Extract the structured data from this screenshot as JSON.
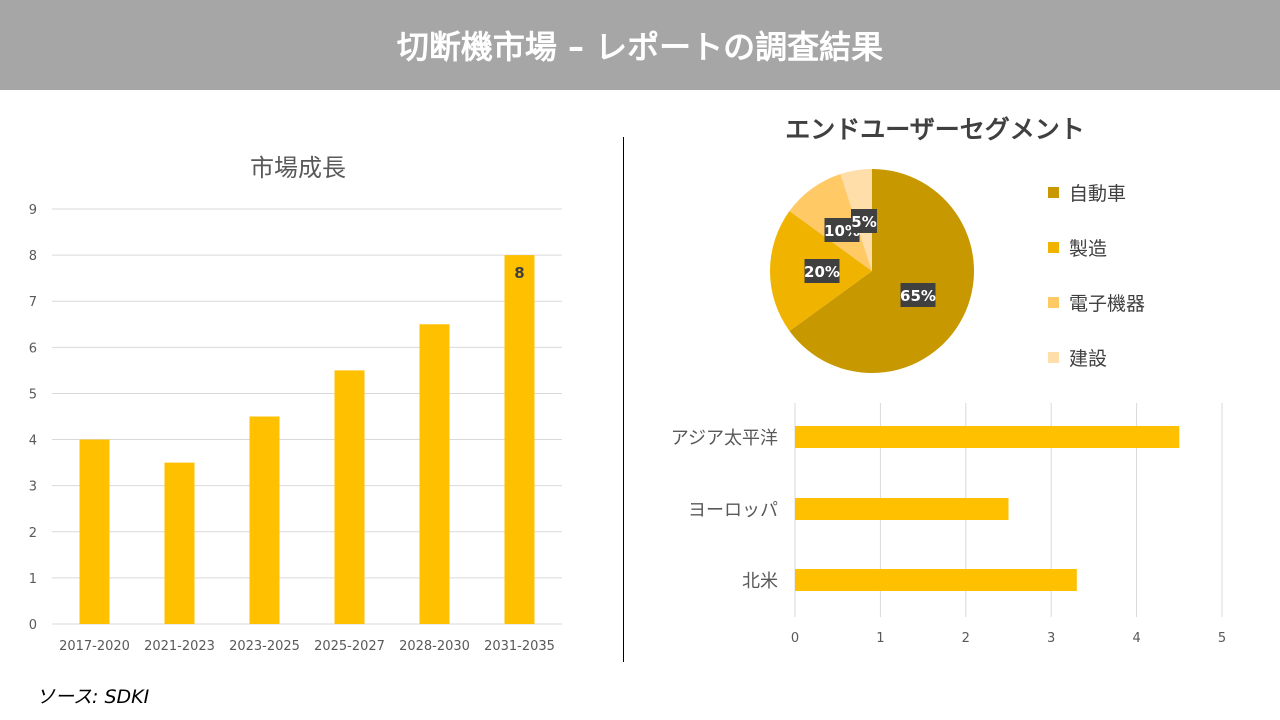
{
  "header": {
    "title": "切断機市場 – レポートの調査結果"
  },
  "source": "ソース: SDKI",
  "colors": {
    "bar": "#FFC000",
    "header": "#A6A6A6",
    "pie": [
      "#C89800",
      "#F0B400",
      "#FFC966",
      "#FFDEAA"
    ]
  },
  "chart_data": [
    {
      "type": "bar",
      "title": "市場成長",
      "categories": [
        "2017-2020",
        "2021-2023",
        "2023-2025",
        "2025-2027",
        "2028-2030",
        "2031-2035"
      ],
      "values": [
        4,
        3.5,
        4.5,
        5.5,
        6.5,
        8
      ],
      "data_labels": {
        "5": "8"
      },
      "ylim": [
        0,
        9
      ],
      "yticks": [
        "0",
        "1",
        "2",
        "3",
        "4",
        "5",
        "6",
        "7",
        "8",
        "9"
      ],
      "grid": true
    },
    {
      "type": "pie",
      "title": "エンドユーザーセグメント",
      "labels": [
        "自動車",
        "製造",
        "電子機器",
        "建設"
      ],
      "values": [
        65,
        20,
        10,
        5
      ],
      "value_labels": [
        "65%",
        "20%",
        "10%",
        "5%"
      ],
      "legend": "right"
    },
    {
      "type": "bar",
      "orientation": "horizontal",
      "categories": [
        "アジア太平洋",
        "ヨーロッパ",
        "北米"
      ],
      "values": [
        4.5,
        2.5,
        3.3
      ],
      "xlim": [
        0,
        5
      ],
      "xticks": [
        "0",
        "1",
        "2",
        "3",
        "4",
        "5"
      ],
      "grid": true
    }
  ]
}
